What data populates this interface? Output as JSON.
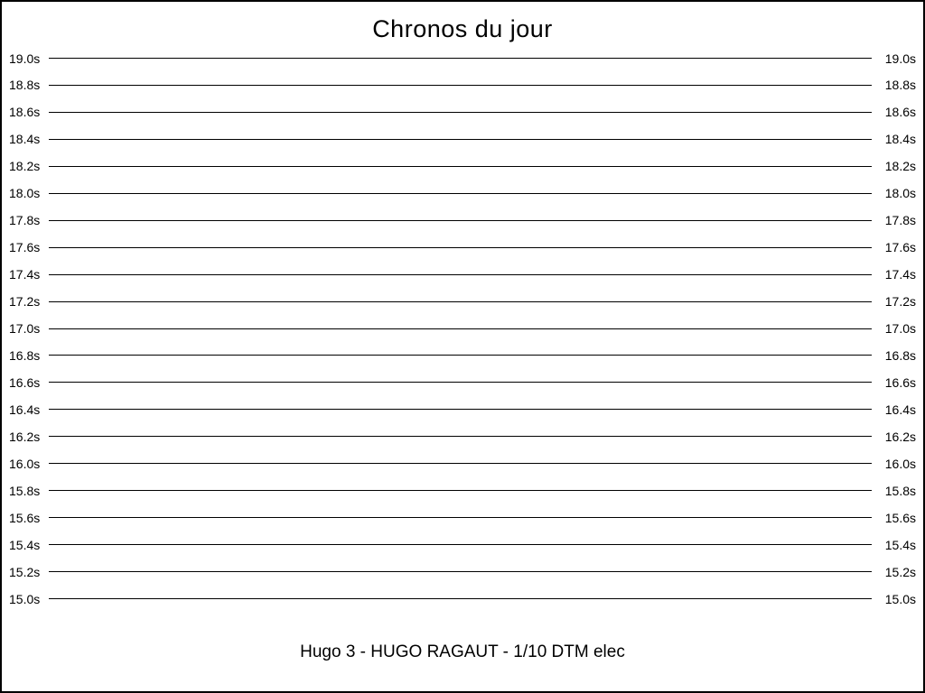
{
  "page": {
    "title": "Chronos du jour",
    "footer": "Hugo 3 - HUGO RAGAUT - 1/10 DTM elec"
  },
  "chart_data": {
    "type": "line",
    "title": "Chronos du jour",
    "y_unit": "s",
    "ylim": [
      15.0,
      19.0
    ],
    "y_tick_step": 0.2,
    "y_ticks": [
      "19.0s",
      "18.8s",
      "18.6s",
      "18.4s",
      "18.2s",
      "18.0s",
      "17.8s",
      "17.6s",
      "17.4s",
      "17.2s",
      "17.0s",
      "16.8s",
      "16.6s",
      "16.4s",
      "16.2s",
      "16.0s",
      "15.8s",
      "15.6s",
      "15.4s",
      "15.2s",
      "15.0s"
    ],
    "y_tick_values": [
      19.0,
      18.8,
      18.6,
      18.4,
      18.2,
      18.0,
      17.8,
      17.6,
      17.4,
      17.2,
      17.0,
      16.8,
      16.6,
      16.4,
      16.2,
      16.0,
      15.8,
      15.6,
      15.4,
      15.2,
      15.0
    ],
    "x": [],
    "series": [],
    "grid": "horizontal-only",
    "tick_labels_on": [
      "left",
      "right"
    ],
    "legend": "none",
    "annotation": "Hugo 3 - HUGO RAGAUT - 1/10 DTM elec",
    "colors": {
      "gridline": "#000000",
      "text": "#000000",
      "background": "#ffffff",
      "frame": "#000000"
    }
  }
}
